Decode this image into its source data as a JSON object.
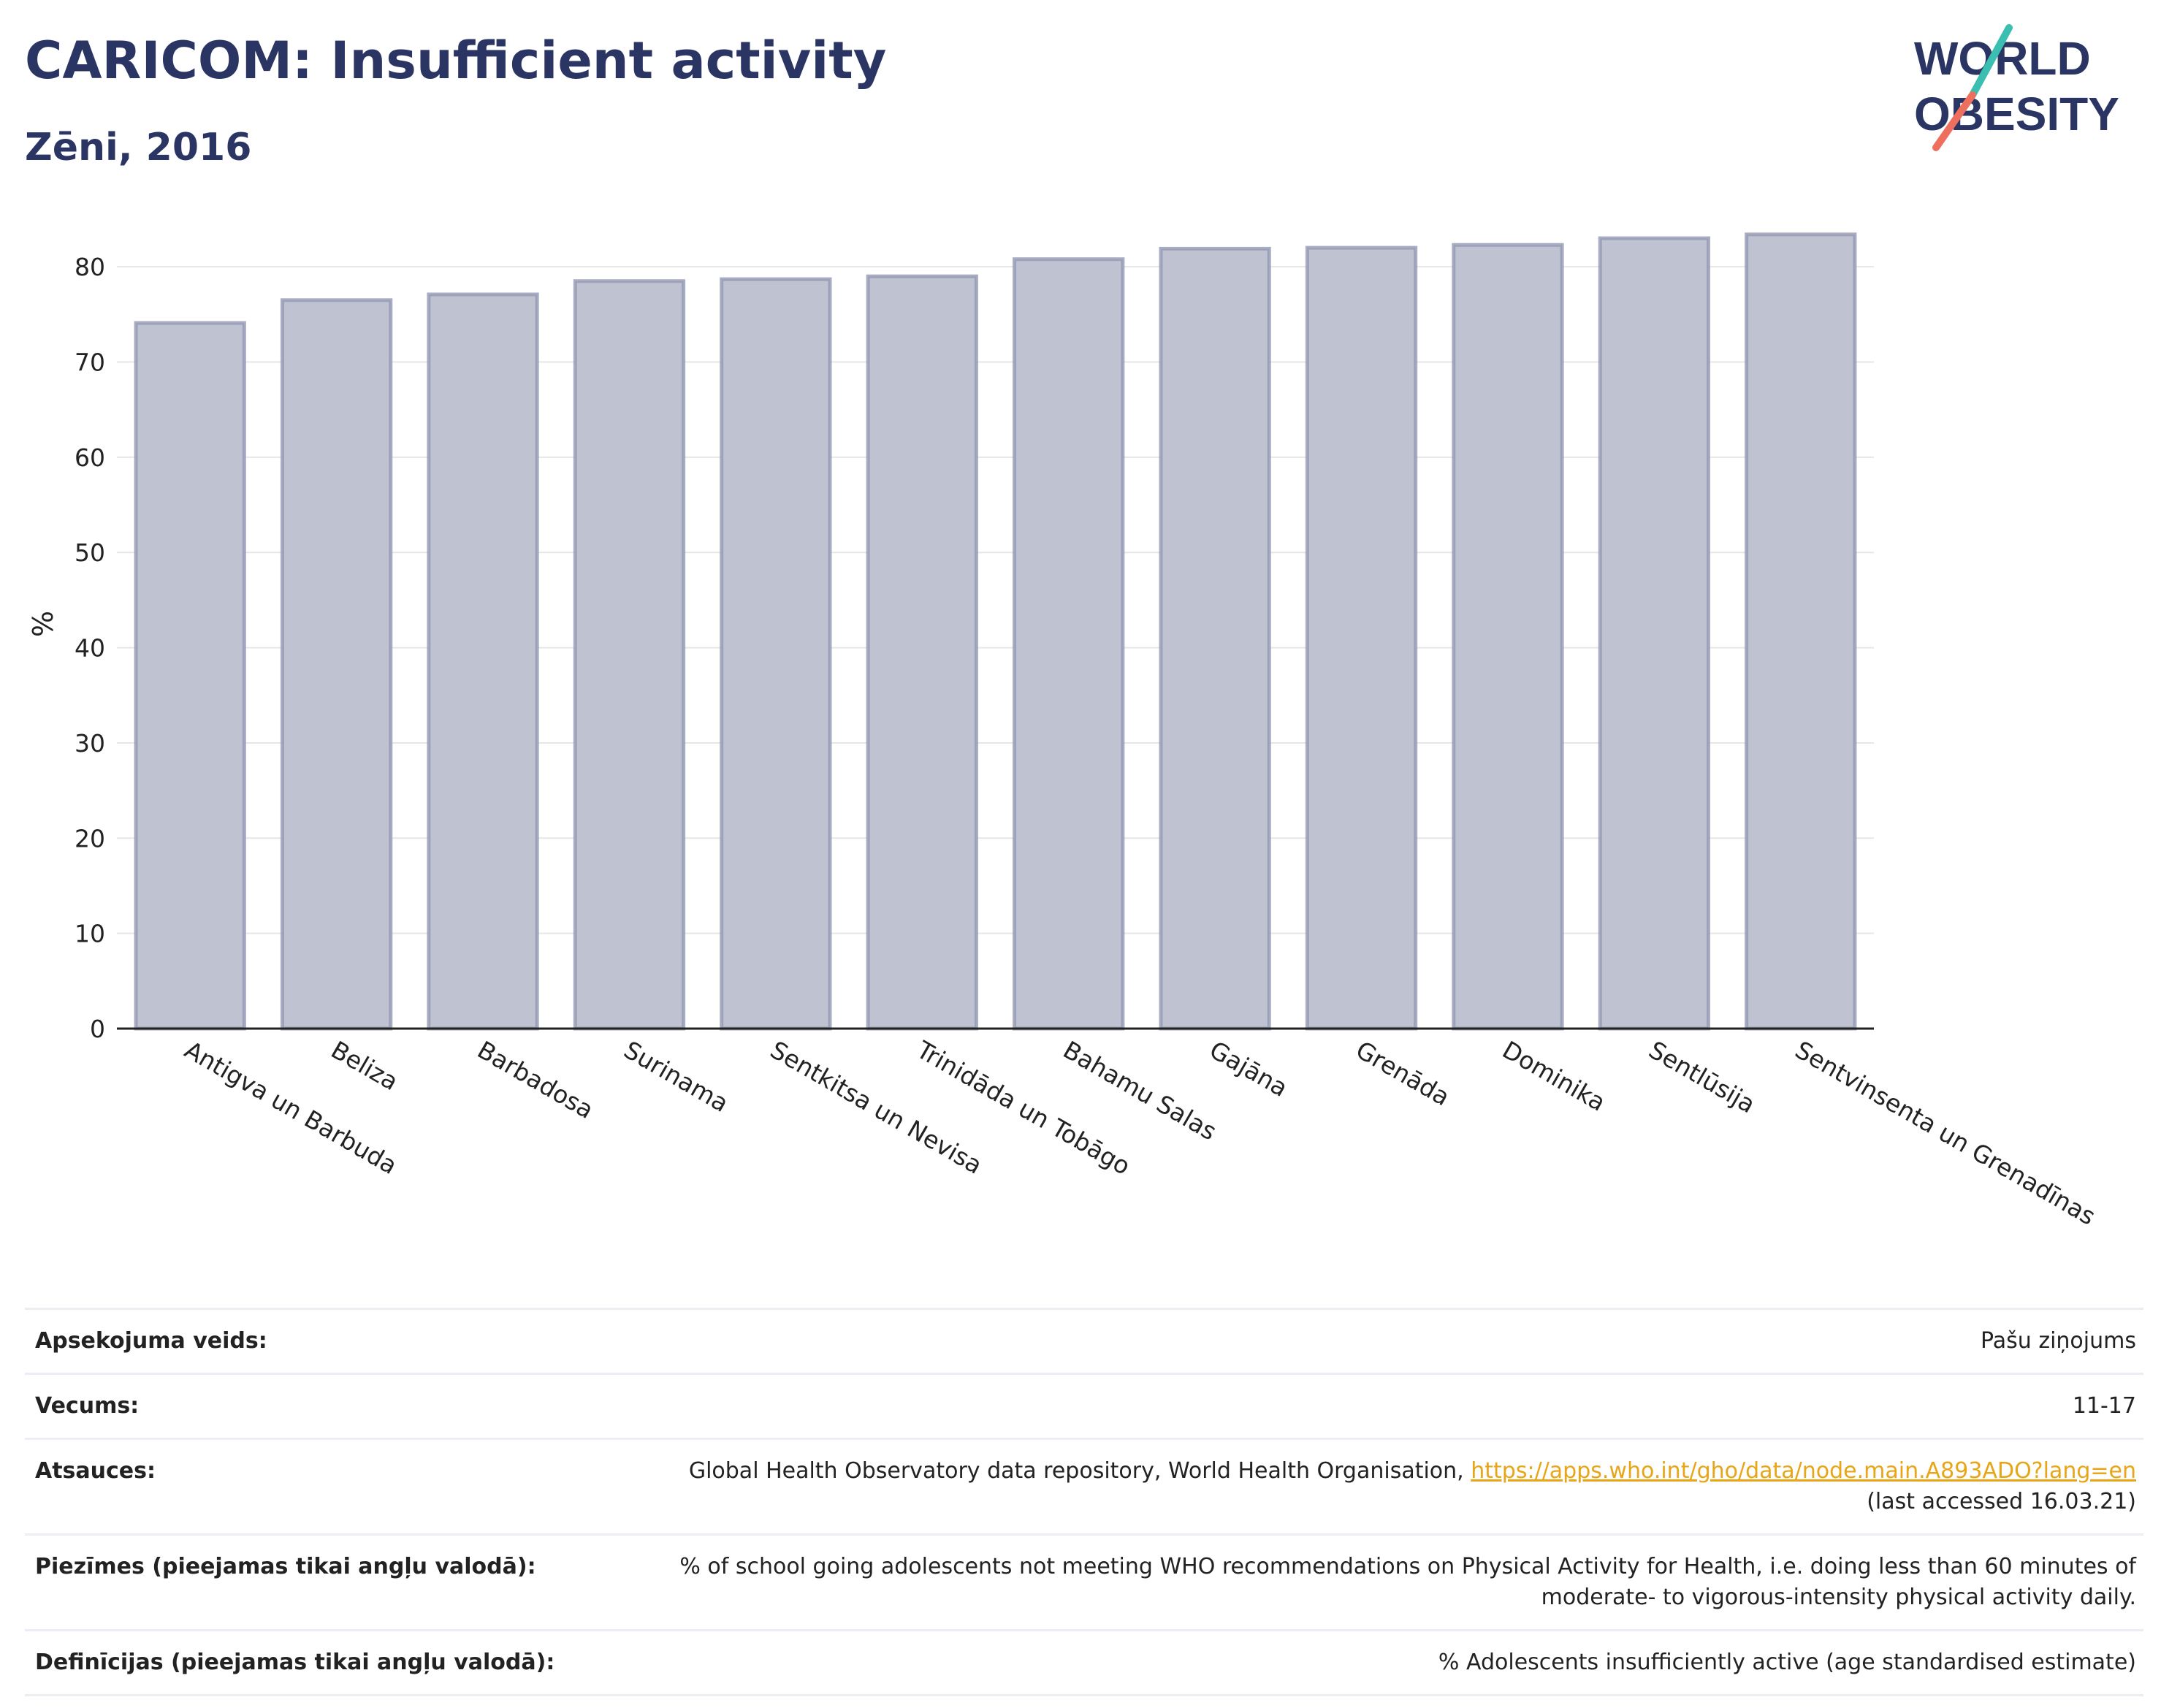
{
  "header": {
    "title": "CARICOM: Insufficient activity",
    "subtitle": "Zēni, 2016"
  },
  "logo": {
    "line1": "WORLD",
    "line2": "OBESITY",
    "colors": {
      "text": "#2b3563",
      "slash_teal": "#3bbfb0",
      "slash_coral": "#ef6f5e"
    }
  },
  "chart_data": {
    "type": "bar",
    "categories": [
      "Antigva un Barbuda",
      "Beliza",
      "Barbadosa",
      "Surinama",
      "Sentkitsa un Nevisa",
      "Trinidāda un Tobāgo",
      "Bahamu Salas",
      "Gajāna",
      "Grenāda",
      "Dominika",
      "Sentlūsija",
      "Sentvinsenta un Grenadīnas"
    ],
    "values": [
      74.1,
      76.5,
      77.1,
      78.5,
      78.7,
      79.0,
      80.8,
      81.9,
      82.0,
      82.3,
      83.0,
      83.4
    ],
    "ylabel": "%",
    "xlabel": "",
    "ylim": [
      0,
      85
    ],
    "yticks": [
      0,
      10,
      20,
      30,
      40,
      50,
      60,
      70,
      80
    ],
    "grid": true,
    "colors": {
      "bar_fill": "#bfc3d1",
      "bar_stroke": "#9399b3"
    }
  },
  "info": {
    "rows": [
      {
        "key": "Apsekojuma veids:",
        "value": "Pašu ziņojums"
      },
      {
        "key": "Vecums:",
        "value": "11-17"
      },
      {
        "key": "Atsauces:",
        "value": "Global Health Observatory data repository, World Health Organisation,",
        "link": "https://apps.who.int/gho/data/node.main.A893ADO?lang=en",
        "value2": "(last accessed 16.03.21)"
      },
      {
        "key": "Piezīmes (pieejamas tikai angļu valodā):",
        "value": "% of school going adolescents not meeting WHO recommendations on Physical Activity for Health, i.e. doing less than 60 minutes of",
        "value2": "moderate- to vigorous-intensity physical activity daily."
      },
      {
        "key": "Definīcijas (pieejamas tikai angļu valodā):",
        "value": "% Adolescents insufficiently active (age standardised estimate)"
      }
    ]
  }
}
